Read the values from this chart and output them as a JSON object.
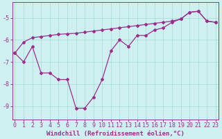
{
  "line_a_x": [
    0,
    1,
    2,
    3,
    4,
    5,
    6,
    7,
    8,
    9,
    10,
    11,
    12,
    13,
    14,
    15,
    16,
    17,
    18,
    19,
    20,
    21,
    22,
    23
  ],
  "line_a_y": [
    -6.6,
    -6.1,
    -5.9,
    -5.85,
    -5.8,
    -5.75,
    -5.72,
    -5.7,
    -5.65,
    -5.6,
    -5.55,
    -5.5,
    -5.45,
    -5.4,
    -5.35,
    -5.3,
    -5.25,
    -5.2,
    -5.15,
    -5.05,
    -4.75,
    -4.7,
    -5.15,
    -5.2
  ],
  "line_b_x": [
    0,
    1,
    2,
    3,
    4,
    5,
    6,
    7,
    8,
    9,
    10,
    11,
    12,
    13,
    14,
    15,
    16,
    17,
    18,
    19,
    20,
    21,
    22,
    23
  ],
  "line_b_y": [
    -6.6,
    -7.0,
    -6.3,
    -7.5,
    -7.5,
    -7.8,
    -7.8,
    -9.1,
    -9.1,
    -8.6,
    -7.8,
    -6.5,
    -6.0,
    -6.3,
    -5.8,
    -5.8,
    -5.55,
    -5.45,
    -5.2,
    -5.05,
    -4.75,
    -4.7,
    -5.15,
    -5.2
  ],
  "color": "#9b2d8e",
  "background": "#cff0f0",
  "grid_color": "#a8d8d8",
  "xlabel": "Windchill (Refroidissement éolien,°C)",
  "ylim": [
    -9.6,
    -4.3
  ],
  "xlim": [
    -0.3,
    23.3
  ],
  "yticks": [
    -9,
    -8,
    -7,
    -6,
    -5
  ],
  "xticks": [
    0,
    1,
    2,
    3,
    4,
    5,
    6,
    7,
    8,
    9,
    10,
    11,
    12,
    13,
    14,
    15,
    16,
    17,
    18,
    19,
    20,
    21,
    22,
    23
  ],
  "xlabel_fontsize": 6.5,
  "tick_fontsize": 6.0,
  "marker": "D",
  "markersize": 2.0,
  "linewidth": 0.9
}
